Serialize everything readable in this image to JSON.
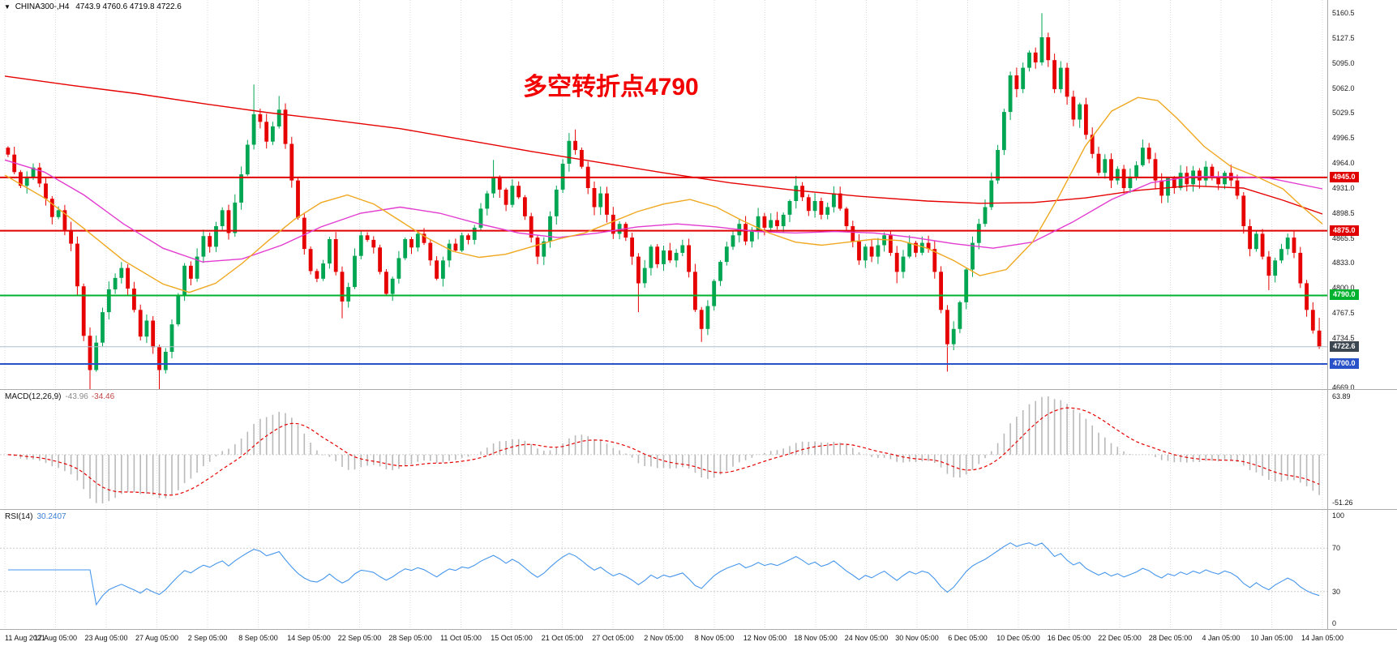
{
  "header": {
    "symbol": "CHINA300-,H4",
    "ohlc_text": "4743.9 4760.6 4719.8 4722.6"
  },
  "icons": {
    "symbol_dropdown": "▼"
  },
  "annotation": {
    "text": "多空转折点4790",
    "color": "#f20000"
  },
  "colors": {
    "up": "#00a651",
    "down": "#e60000",
    "grid": "#dcdcdc",
    "macd_hist": "#b9b9b9",
    "macd_signal": "#e60000",
    "rsi_line": "#4696ec",
    "axis_text": "#1a1a1a",
    "separator": "#ababab"
  },
  "chart_data": {
    "type": "candlestick",
    "symbol": "CHINA300-",
    "timeframe": "H4",
    "title": "CHINA300-,H4 4743.9 4760.6 4719.8 4722.6",
    "ylim": [
      4667,
      5178
    ],
    "price_axis_ticks": [
      "5160.5",
      "5127.5",
      "5095.0",
      "5062.0",
      "5029.5",
      "4996.5",
      "4964.0",
      "4931.0",
      "4898.5",
      "4865.5",
      "4833.0",
      "4800.0",
      "4767.5",
      "4734.5",
      "4669.0"
    ],
    "x_labels": [
      "11 Aug 2021",
      "17 Aug 05:00",
      "23 Aug 05:00",
      "27 Aug 05:00",
      "2 Sep 05:00",
      "8 Sep 05:00",
      "14 Sep 05:00",
      "22 Sep 05:00",
      "28 Sep 05:00",
      "11 Oct 05:00",
      "15 Oct 05:00",
      "21 Oct 05:00",
      "27 Oct 05:00",
      "2 Nov 05:00",
      "8 Nov 05:00",
      "12 Nov 05:00",
      "18 Nov 05:00",
      "24 Nov 05:00",
      "30 Nov 05:00",
      "6 Dec 05:00",
      "10 Dec 05:00",
      "16 Dec 05:00",
      "22 Dec 05:00",
      "28 Dec 05:00",
      "4 Jan 05:00",
      "10 Jan 05:00",
      "14 Jan 05:00"
    ],
    "last_bar": {
      "open": 4743.9,
      "high": 4760.6,
      "low": 4719.8,
      "close": 4722.6
    },
    "closes": [
      4975,
      4952,
      4934,
      4946,
      4958,
      4937,
      4917,
      4893,
      4902,
      4876,
      4858,
      4802,
      4737,
      4692,
      4728,
      4768,
      4798,
      4813,
      4826,
      4799,
      4771,
      4736,
      4757,
      4722,
      4692,
      4716,
      4752,
      4791,
      4829,
      4812,
      4841,
      4868,
      4854,
      4881,
      4902,
      4872,
      4912,
      4949,
      4988,
      5028,
      5018,
      4992,
      5012,
      5034,
      4989,
      4941,
      4892,
      4851,
      4822,
      4812,
      4832,
      4864,
      4821,
      4782,
      4801,
      4842,
      4869,
      4863,
      4853,
      4821,
      4792,
      4812,
      4839,
      4864,
      4853,
      4871,
      4859,
      4836,
      4812,
      4836,
      4858,
      4849,
      4869,
      4863,
      4879,
      4904,
      4924,
      4944,
      4929,
      4909,
      4934,
      4919,
      4894,
      4866,
      4841,
      4861,
      4894,
      4929,
      4963,
      4993,
      4981,
      4959,
      4931,
      4906,
      4924,
      4896,
      4871,
      4884,
      4866,
      4841,
      4806,
      4826,
      4854,
      4831,
      4849,
      4836,
      4846,
      4856,
      4821,
      4771,
      4746,
      4776,
      4809,
      4834,
      4854,
      4869,
      4884,
      4861,
      4874,
      4894,
      4879,
      4889,
      4881,
      4896,
      4914,
      4934,
      4919,
      4901,
      4914,
      4896,
      4906,
      4924,
      4904,
      4881,
      4861,
      4836,
      4854,
      4841,
      4856,
      4869,
      4846,
      4821,
      4841,
      4859,
      4846,
      4859,
      4851,
      4821,
      4771,
      4726,
      4746,
      4781,
      4824,
      4859,
      4884,
      4906,
      4941,
      4981,
      5031,
      5079,
      5061,
      5089,
      5109,
      5096,
      5129,
      5099,
      5061,
      5089,
      5051,
      5021,
      5041,
      5001,
      4976,
      4951,
      4969,
      4941,
      4956,
      4931,
      4946,
      4961,
      4984,
      4969,
      4941,
      4921,
      4944,
      4931,
      4951,
      4936,
      4954,
      4941,
      4959,
      4946,
      4936,
      4951,
      4941,
      4921,
      4881,
      4851,
      4871,
      4841,
      4816,
      4836,
      4851,
      4866,
      4846,
      4806,
      4771,
      4744,
      4722.6
    ],
    "wick_extremes": [
      {
        "i": 13,
        "low": 4652
      },
      {
        "i": 24,
        "low": 4648
      },
      {
        "i": 39,
        "high": 5067
      },
      {
        "i": 43,
        "high": 5052
      },
      {
        "i": 53,
        "low": 4760
      },
      {
        "i": 77,
        "high": 4968
      },
      {
        "i": 90,
        "high": 5008
      },
      {
        "i": 100,
        "low": 4768
      },
      {
        "i": 110,
        "low": 4729
      },
      {
        "i": 125,
        "high": 4947
      },
      {
        "i": 141,
        "low": 4806
      },
      {
        "i": 149,
        "low": 4690
      },
      {
        "i": 164,
        "high": 5160.5
      },
      {
        "i": 200,
        "low": 4797
      }
    ],
    "hlines": [
      {
        "name": "resistance-line-4945",
        "price": 4945.0,
        "label": "4945.0",
        "color": "#e00000",
        "badge": "#e00000",
        "width": 2
      },
      {
        "name": "resistance-line-4875",
        "price": 4875.0,
        "label": "4875.0",
        "color": "#e00000",
        "badge": "#e00000",
        "width": 2
      },
      {
        "name": "support-line-4790",
        "price": 4790.0,
        "label": "4790.0",
        "color": "#00b22d",
        "badge": "#00b22d",
        "width": 2
      },
      {
        "name": "current-price-line",
        "price": 4722.6,
        "label": "4722.6",
        "color": "#aebfc9",
        "badge": "#3c4650",
        "width": 1
      },
      {
        "name": "support-line-4700",
        "price": 4700.0,
        "label": "4700.0",
        "color": "#2a52c8",
        "badge": "#2a52c8",
        "width": 2
      }
    ],
    "moving_averages": [
      {
        "name": "ma-slow-red",
        "color": "#e60000",
        "points": [
          [
            0,
            5078
          ],
          [
            0.05,
            5066
          ],
          [
            0.1,
            5055
          ],
          [
            0.15,
            5042
          ],
          [
            0.2,
            5030
          ],
          [
            0.25,
            5020
          ],
          [
            0.3,
            5009
          ],
          [
            0.35,
            4994
          ],
          [
            0.4,
            4979
          ],
          [
            0.45,
            4965
          ],
          [
            0.5,
            4951
          ],
          [
            0.55,
            4938
          ],
          [
            0.6,
            4928
          ],
          [
            0.65,
            4920
          ],
          [
            0.7,
            4914
          ],
          [
            0.74,
            4911
          ],
          [
            0.78,
            4912
          ],
          [
            0.82,
            4918
          ],
          [
            0.86,
            4928
          ],
          [
            0.9,
            4934
          ],
          [
            0.94,
            4931
          ],
          [
            0.97,
            4915
          ],
          [
            1,
            4897
          ]
        ]
      },
      {
        "name": "ma-mid-magenta",
        "color": "#e23bd0",
        "points": [
          [
            0,
            4968
          ],
          [
            0.03,
            4952
          ],
          [
            0.06,
            4922
          ],
          [
            0.09,
            4884
          ],
          [
            0.12,
            4852
          ],
          [
            0.15,
            4834
          ],
          [
            0.18,
            4838
          ],
          [
            0.21,
            4856
          ],
          [
            0.24,
            4880
          ],
          [
            0.27,
            4898
          ],
          [
            0.3,
            4906
          ],
          [
            0.33,
            4898
          ],
          [
            0.36,
            4884
          ],
          [
            0.39,
            4872
          ],
          [
            0.42,
            4866
          ],
          [
            0.45,
            4872
          ],
          [
            0.48,
            4880
          ],
          [
            0.51,
            4884
          ],
          [
            0.54,
            4880
          ],
          [
            0.57,
            4874
          ],
          [
            0.6,
            4872
          ],
          [
            0.63,
            4874
          ],
          [
            0.66,
            4872
          ],
          [
            0.69,
            4866
          ],
          [
            0.72,
            4858
          ],
          [
            0.75,
            4852
          ],
          [
            0.78,
            4860
          ],
          [
            0.81,
            4886
          ],
          [
            0.84,
            4916
          ],
          [
            0.87,
            4938
          ],
          [
            0.9,
            4946
          ],
          [
            0.93,
            4946
          ],
          [
            0.96,
            4944
          ],
          [
            1,
            4930
          ]
        ]
      },
      {
        "name": "ma-fast-orange",
        "color": "#efa820",
        "points": [
          [
            0,
            4948
          ],
          [
            0.03,
            4918
          ],
          [
            0.06,
            4878
          ],
          [
            0.09,
            4836
          ],
          [
            0.12,
            4805
          ],
          [
            0.14,
            4794
          ],
          [
            0.16,
            4806
          ],
          [
            0.18,
            4832
          ],
          [
            0.2,
            4862
          ],
          [
            0.22,
            4890
          ],
          [
            0.24,
            4912
          ],
          [
            0.26,
            4922
          ],
          [
            0.28,
            4910
          ],
          [
            0.3,
            4888
          ],
          [
            0.32,
            4866
          ],
          [
            0.34,
            4848
          ],
          [
            0.36,
            4840
          ],
          [
            0.38,
            4844
          ],
          [
            0.4,
            4854
          ],
          [
            0.42,
            4864
          ],
          [
            0.44,
            4872
          ],
          [
            0.46,
            4886
          ],
          [
            0.48,
            4900
          ],
          [
            0.5,
            4910
          ],
          [
            0.52,
            4916
          ],
          [
            0.54,
            4906
          ],
          [
            0.56,
            4888
          ],
          [
            0.58,
            4872
          ],
          [
            0.6,
            4860
          ],
          [
            0.62,
            4856
          ],
          [
            0.64,
            4860
          ],
          [
            0.66,
            4864
          ],
          [
            0.68,
            4862
          ],
          [
            0.7,
            4852
          ],
          [
            0.72,
            4836
          ],
          [
            0.74,
            4816
          ],
          [
            0.76,
            4824
          ],
          [
            0.78,
            4860
          ],
          [
            0.8,
            4920
          ],
          [
            0.82,
            4986
          ],
          [
            0.84,
            5032
          ],
          [
            0.86,
            5050
          ],
          [
            0.875,
            5046
          ],
          [
            0.89,
            5022
          ],
          [
            0.91,
            4986
          ],
          [
            0.93,
            4960
          ],
          [
            0.95,
            4946
          ],
          [
            0.97,
            4930
          ],
          [
            0.985,
            4906
          ],
          [
            1,
            4884
          ]
        ]
      }
    ],
    "macd": {
      "label": "MACD(12,26,9)",
      "value_main": "-43.96",
      "value_signal": "-34.46",
      "fast": 12,
      "slow": 26,
      "signal": 9,
      "axis_ticks": [
        "63.89",
        "-51.26"
      ]
    },
    "rsi": {
      "label": "RSI(14)",
      "value_text": "30.2407",
      "period": 14,
      "guides": [
        70,
        30
      ],
      "axis_ticks": [
        "100",
        "70",
        "30",
        "0"
      ]
    }
  }
}
